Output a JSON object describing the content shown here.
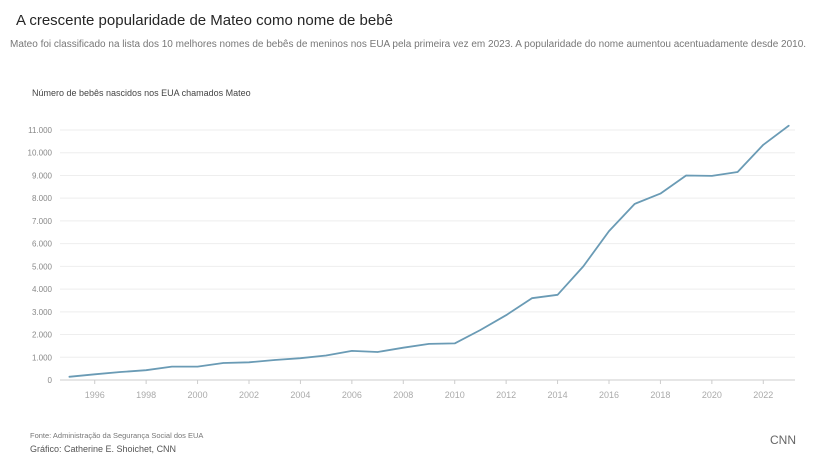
{
  "title": "A crescente popularidade de Mateo como nome de bebê",
  "subtitle": "Mateo foi classificado na lista dos 10 melhores nomes de bebês de meninos nos EUA pela primeira vez em 2023. A popularidade do nome aumentou acentuadamente desde 2010.",
  "footer": {
    "source": "Fonte: Administração da Segurança Social dos EUA",
    "credit": "Gráfico: Catherine E. Shoichet, CNN",
    "brand": "CNN"
  },
  "chart_data": {
    "type": "line",
    "ylabel": "Número de bebês nascidos nos EUA chamados Mateo",
    "xlabel": "",
    "x": [
      1995,
      1996,
      1997,
      1998,
      1999,
      2000,
      2001,
      2002,
      2003,
      2004,
      2005,
      2006,
      2007,
      2008,
      2009,
      2010,
      2011,
      2012,
      2013,
      2014,
      2015,
      2016,
      2017,
      2018,
      2019,
      2020,
      2021,
      2022,
      2023
    ],
    "values": [
      140,
      250,
      350,
      430,
      590,
      590,
      750,
      780,
      880,
      960,
      1080,
      1280,
      1230,
      1420,
      1590,
      1610,
      2200,
      2850,
      3600,
      3750,
      5000,
      6550,
      7750,
      8200,
      9000,
      8980,
      9150,
      10350,
      11200
    ],
    "xlim": [
      1995,
      2023
    ],
    "ylim": [
      0,
      11000
    ],
    "xticks": [
      "1996",
      "1998",
      "2000",
      "2002",
      "2004",
      "2006",
      "2008",
      "2010",
      "2012",
      "2014",
      "2016",
      "2018",
      "2020",
      "2022"
    ],
    "yticks": [
      "0",
      "1.000",
      "2.000",
      "3.000",
      "4.000",
      "5.000",
      "6.000",
      "7.000",
      "8.000",
      "9.000",
      "10.000",
      "11.000"
    ],
    "grid": true,
    "line_color": "#6a9bb5"
  }
}
